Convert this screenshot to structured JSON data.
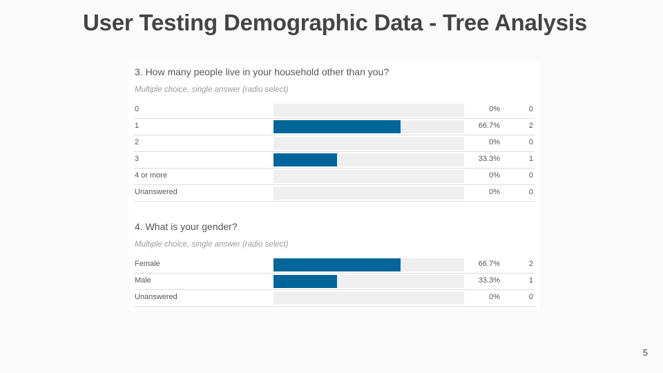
{
  "slide": {
    "title": "User Testing Demographic Data - Tree Analysis",
    "page_number": "5"
  },
  "colors": {
    "bar": "#00669a",
    "track": "#efefef"
  },
  "chart_data": [
    {
      "type": "bar",
      "orientation": "horizontal",
      "title": "3. How many people live in your household other than you?",
      "subtitle": "Multiple choice, single answer (radio select)",
      "categories": [
        "0",
        "1",
        "2",
        "3",
        "4 or more",
        "Unanswered"
      ],
      "percent_labels": [
        "0%",
        "66.7%",
        "0%",
        "33.3%",
        "0%",
        "0%"
      ],
      "values": [
        0,
        66.7,
        0,
        33.3,
        0,
        0
      ],
      "counts": [
        0,
        2,
        0,
        1,
        0,
        0
      ],
      "xlim": [
        0,
        100
      ],
      "grid": false
    },
    {
      "type": "bar",
      "orientation": "horizontal",
      "title": "4. What is your gender?",
      "subtitle": "Multiple choice, single answer (radio select)",
      "categories": [
        "Female",
        "Male",
        "Unanswered"
      ],
      "percent_labels": [
        "66.7%",
        "33.3%",
        "0%"
      ],
      "values": [
        66.7,
        33.3,
        0
      ],
      "counts": [
        2,
        1,
        0
      ],
      "xlim": [
        0,
        100
      ],
      "grid": false
    }
  ]
}
